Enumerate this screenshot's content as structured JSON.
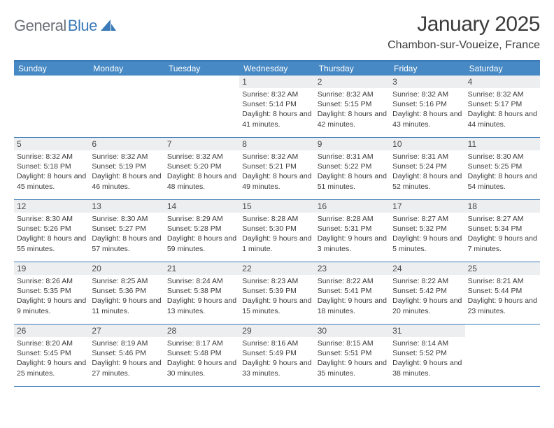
{
  "brand": {
    "part1": "General",
    "part2": "Blue"
  },
  "title": "January 2025",
  "location": "Chambon-sur-Voueize, France",
  "colors": {
    "accent": "#3a7ab8",
    "header_bg": "#4789c4",
    "daynum_bg": "#eceef0",
    "text": "#3b3b3b",
    "logo_gray": "#6b6f75"
  },
  "day_names": [
    "Sunday",
    "Monday",
    "Tuesday",
    "Wednesday",
    "Thursday",
    "Friday",
    "Saturday"
  ],
  "weeks": [
    [
      null,
      null,
      null,
      {
        "n": "1",
        "sr": "8:32 AM",
        "ss": "5:14 PM",
        "dl": "8 hours and 41 minutes."
      },
      {
        "n": "2",
        "sr": "8:32 AM",
        "ss": "5:15 PM",
        "dl": "8 hours and 42 minutes."
      },
      {
        "n": "3",
        "sr": "8:32 AM",
        "ss": "5:16 PM",
        "dl": "8 hours and 43 minutes."
      },
      {
        "n": "4",
        "sr": "8:32 AM",
        "ss": "5:17 PM",
        "dl": "8 hours and 44 minutes."
      }
    ],
    [
      {
        "n": "5",
        "sr": "8:32 AM",
        "ss": "5:18 PM",
        "dl": "8 hours and 45 minutes."
      },
      {
        "n": "6",
        "sr": "8:32 AM",
        "ss": "5:19 PM",
        "dl": "8 hours and 46 minutes."
      },
      {
        "n": "7",
        "sr": "8:32 AM",
        "ss": "5:20 PM",
        "dl": "8 hours and 48 minutes."
      },
      {
        "n": "8",
        "sr": "8:32 AM",
        "ss": "5:21 PM",
        "dl": "8 hours and 49 minutes."
      },
      {
        "n": "9",
        "sr": "8:31 AM",
        "ss": "5:22 PM",
        "dl": "8 hours and 51 minutes."
      },
      {
        "n": "10",
        "sr": "8:31 AM",
        "ss": "5:24 PM",
        "dl": "8 hours and 52 minutes."
      },
      {
        "n": "11",
        "sr": "8:30 AM",
        "ss": "5:25 PM",
        "dl": "8 hours and 54 minutes."
      }
    ],
    [
      {
        "n": "12",
        "sr": "8:30 AM",
        "ss": "5:26 PM",
        "dl": "8 hours and 55 minutes."
      },
      {
        "n": "13",
        "sr": "8:30 AM",
        "ss": "5:27 PM",
        "dl": "8 hours and 57 minutes."
      },
      {
        "n": "14",
        "sr": "8:29 AM",
        "ss": "5:28 PM",
        "dl": "8 hours and 59 minutes."
      },
      {
        "n": "15",
        "sr": "8:28 AM",
        "ss": "5:30 PM",
        "dl": "9 hours and 1 minute."
      },
      {
        "n": "16",
        "sr": "8:28 AM",
        "ss": "5:31 PM",
        "dl": "9 hours and 3 minutes."
      },
      {
        "n": "17",
        "sr": "8:27 AM",
        "ss": "5:32 PM",
        "dl": "9 hours and 5 minutes."
      },
      {
        "n": "18",
        "sr": "8:27 AM",
        "ss": "5:34 PM",
        "dl": "9 hours and 7 minutes."
      }
    ],
    [
      {
        "n": "19",
        "sr": "8:26 AM",
        "ss": "5:35 PM",
        "dl": "9 hours and 9 minutes."
      },
      {
        "n": "20",
        "sr": "8:25 AM",
        "ss": "5:36 PM",
        "dl": "9 hours and 11 minutes."
      },
      {
        "n": "21",
        "sr": "8:24 AM",
        "ss": "5:38 PM",
        "dl": "9 hours and 13 minutes."
      },
      {
        "n": "22",
        "sr": "8:23 AM",
        "ss": "5:39 PM",
        "dl": "9 hours and 15 minutes."
      },
      {
        "n": "23",
        "sr": "8:22 AM",
        "ss": "5:41 PM",
        "dl": "9 hours and 18 minutes."
      },
      {
        "n": "24",
        "sr": "8:22 AM",
        "ss": "5:42 PM",
        "dl": "9 hours and 20 minutes."
      },
      {
        "n": "25",
        "sr": "8:21 AM",
        "ss": "5:44 PM",
        "dl": "9 hours and 23 minutes."
      }
    ],
    [
      {
        "n": "26",
        "sr": "8:20 AM",
        "ss": "5:45 PM",
        "dl": "9 hours and 25 minutes."
      },
      {
        "n": "27",
        "sr": "8:19 AM",
        "ss": "5:46 PM",
        "dl": "9 hours and 27 minutes."
      },
      {
        "n": "28",
        "sr": "8:17 AM",
        "ss": "5:48 PM",
        "dl": "9 hours and 30 minutes."
      },
      {
        "n": "29",
        "sr": "8:16 AM",
        "ss": "5:49 PM",
        "dl": "9 hours and 33 minutes."
      },
      {
        "n": "30",
        "sr": "8:15 AM",
        "ss": "5:51 PM",
        "dl": "9 hours and 35 minutes."
      },
      {
        "n": "31",
        "sr": "8:14 AM",
        "ss": "5:52 PM",
        "dl": "9 hours and 38 minutes."
      },
      null
    ]
  ],
  "labels": {
    "sunrise": "Sunrise: ",
    "sunset": "Sunset: ",
    "daylight": "Daylight: "
  }
}
